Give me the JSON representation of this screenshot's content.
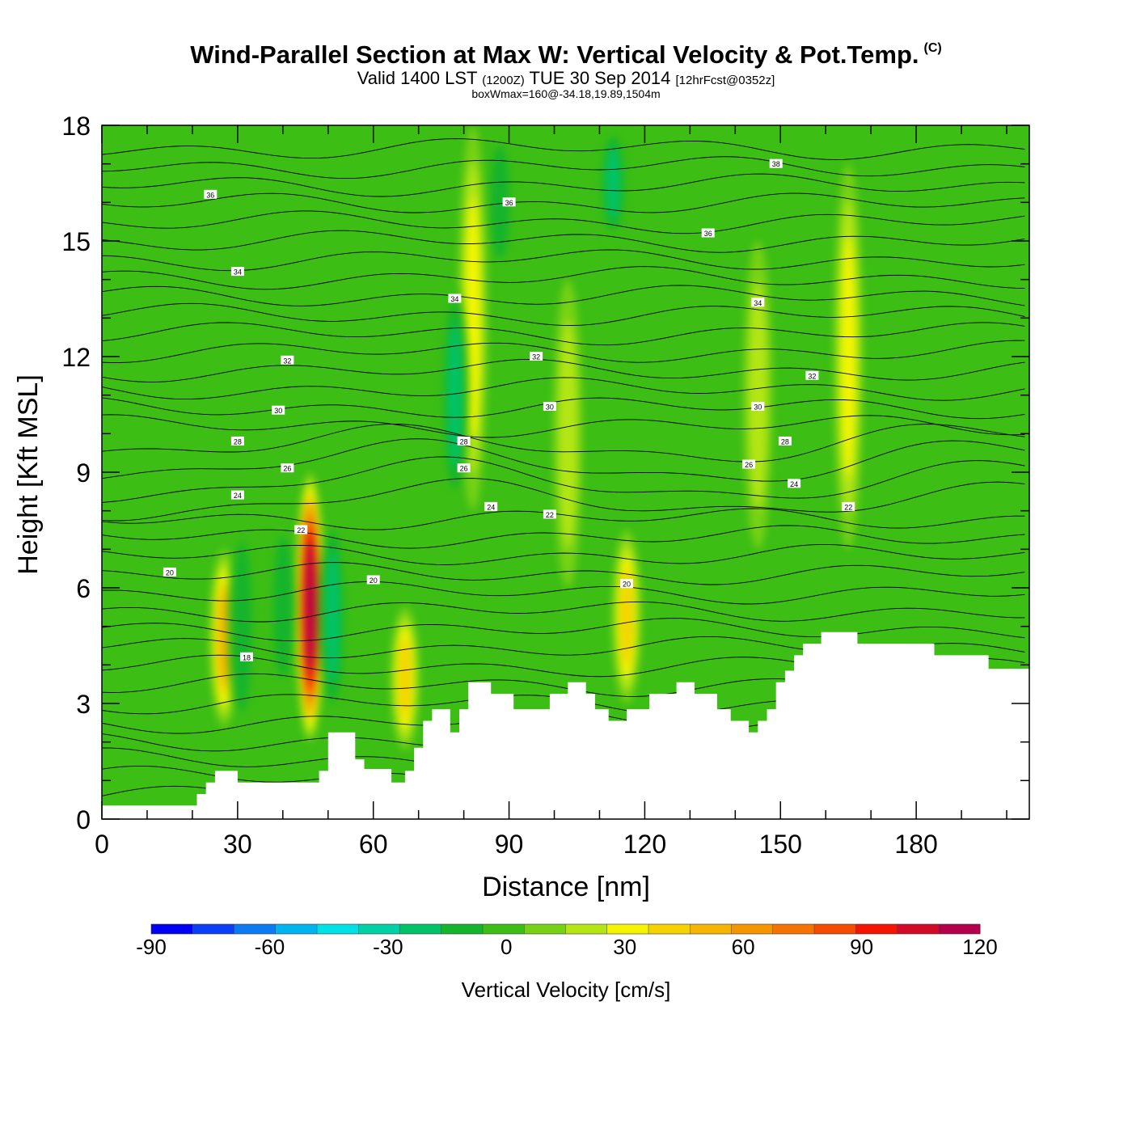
{
  "header": {
    "title": "Wind-Parallel Section at Max W: Vertical Velocity & Pot.Temp.",
    "copyright": "(C)",
    "valid_prefix": "Valid 1400 LST",
    "valid_z": "(1200Z)",
    "valid_date": "TUE 30 Sep 2014",
    "valid_fcst": "[12hrFcst@0352z]",
    "box_info": "boxWmax=160@-34.18,19.89,1504m"
  },
  "chart_data": {
    "type": "heatmap",
    "title": "Wind-Parallel Section at Max W: Vertical Velocity & Pot.Temp.",
    "xlabel": "Distance [nm]",
    "ylabel": "Height [Kft MSL]",
    "xlim": [
      0,
      205
    ],
    "ylim": [
      0,
      18
    ],
    "x_ticks": [
      "0",
      "30",
      "60",
      "90",
      "120",
      "150",
      "180"
    ],
    "y_ticks": [
      "0",
      "3",
      "6",
      "9",
      "12",
      "15",
      "18"
    ],
    "colorbar": {
      "label": "Vertical Velocity [cm/s]",
      "min": -90,
      "max": 120,
      "step": 10,
      "tick_labels": [
        "-90",
        "-60",
        "-30",
        "0",
        "30",
        "60",
        "90",
        "120"
      ],
      "colors": [
        "#0000f5",
        "#0a3ff5",
        "#0a7bf0",
        "#00b4f0",
        "#00e1e6",
        "#00d2a5",
        "#00c369",
        "#14b42d",
        "#3cbe14",
        "#78d214",
        "#b4e614",
        "#f5f500",
        "#f5d200",
        "#f5b400",
        "#f59600",
        "#f57300",
        "#f54b00",
        "#f51400",
        "#d20a28",
        "#b4004b"
      ]
    },
    "terrain_kft": [
      [
        0,
        0.35
      ],
      [
        10,
        0.35
      ],
      [
        21,
        0.35
      ],
      [
        21,
        0.65
      ],
      [
        23,
        0.65
      ],
      [
        23,
        0.95
      ],
      [
        25,
        0.95
      ],
      [
        25,
        1.25
      ],
      [
        30,
        1.25
      ],
      [
        30,
        0.95
      ],
      [
        48,
        0.95
      ],
      [
        48,
        1.25
      ],
      [
        50,
        1.25
      ],
      [
        50,
        2.25
      ],
      [
        56,
        2.25
      ],
      [
        56,
        1.55
      ],
      [
        58,
        1.55
      ],
      [
        58,
        1.3
      ],
      [
        64,
        1.3
      ],
      [
        64,
        0.95
      ],
      [
        67,
        0.95
      ],
      [
        67,
        1.25
      ],
      [
        69,
        1.25
      ],
      [
        69,
        1.85
      ],
      [
        71,
        1.85
      ],
      [
        71,
        2.55
      ],
      [
        73,
        2.55
      ],
      [
        73,
        2.85
      ],
      [
        77,
        2.85
      ],
      [
        77,
        2.25
      ],
      [
        79,
        2.25
      ],
      [
        79,
        2.85
      ],
      [
        81,
        2.85
      ],
      [
        81,
        3.55
      ],
      [
        86,
        3.55
      ],
      [
        86,
        3.25
      ],
      [
        91,
        3.25
      ],
      [
        91,
        2.85
      ],
      [
        99,
        2.85
      ],
      [
        99,
        3.25
      ],
      [
        103,
        3.25
      ],
      [
        103,
        3.55
      ],
      [
        107,
        3.55
      ],
      [
        107,
        3.25
      ],
      [
        109,
        3.25
      ],
      [
        109,
        2.85
      ],
      [
        112,
        2.85
      ],
      [
        112,
        2.55
      ],
      [
        116,
        2.55
      ],
      [
        116,
        2.85
      ],
      [
        121,
        2.85
      ],
      [
        121,
        3.25
      ],
      [
        127,
        3.25
      ],
      [
        127,
        3.55
      ],
      [
        131,
        3.55
      ],
      [
        131,
        3.25
      ],
      [
        136,
        3.25
      ],
      [
        136,
        2.85
      ],
      [
        139,
        2.85
      ],
      [
        139,
        2.55
      ],
      [
        143,
        2.55
      ],
      [
        143,
        2.25
      ],
      [
        145,
        2.25
      ],
      [
        145,
        2.55
      ],
      [
        147,
        2.55
      ],
      [
        147,
        2.85
      ],
      [
        149,
        2.85
      ],
      [
        149,
        3.55
      ],
      [
        151,
        3.55
      ],
      [
        151,
        3.85
      ],
      [
        153,
        3.85
      ],
      [
        153,
        4.25
      ],
      [
        155,
        4.25
      ],
      [
        155,
        4.55
      ],
      [
        159,
        4.55
      ],
      [
        159,
        4.85
      ],
      [
        167,
        4.85
      ],
      [
        167,
        4.55
      ],
      [
        184,
        4.55
      ],
      [
        184,
        4.25
      ],
      [
        196,
        4.25
      ],
      [
        196,
        3.9
      ],
      [
        205,
        3.9
      ]
    ],
    "vertical_velocity_features": [
      {
        "x": 46,
        "z_bottom": 2.0,
        "z_top": 9.0,
        "max": 120
      },
      {
        "x": 27,
        "z_bottom": 2.4,
        "z_top": 7.0,
        "max": 50
      },
      {
        "x": 67,
        "z_bottom": 1.8,
        "z_top": 5.5,
        "max": 40
      },
      {
        "x": 116,
        "z_bottom": 3.0,
        "z_top": 7.5,
        "max": 40
      },
      {
        "x": 165,
        "z_bottom": 7.0,
        "z_top": 17.0,
        "max": 30
      },
      {
        "x": 82,
        "z_bottom": 8.0,
        "z_top": 18.0,
        "max": 30
      },
      {
        "x": 103,
        "z_bottom": 6.0,
        "z_top": 14.0,
        "max": 25
      },
      {
        "x": 145,
        "z_bottom": 7.0,
        "z_top": 15.0,
        "max": 25
      },
      {
        "x": 31,
        "z_bottom": 2.0,
        "z_top": 8.0,
        "min": -25
      },
      {
        "x": 40,
        "z_bottom": 3.0,
        "z_top": 8.0,
        "min": -20
      },
      {
        "x": 51,
        "z_bottom": 2.5,
        "z_top": 8.0,
        "min": -30
      },
      {
        "x": 78,
        "z_bottom": 8.0,
        "z_top": 14.0,
        "min": -35
      },
      {
        "x": 113,
        "z_bottom": 15.0,
        "z_top": 18.0,
        "min": -35
      },
      {
        "x": 88,
        "z_bottom": 14.0,
        "z_top": 18.0,
        "min": -25
      }
    ],
    "potential_temperature_labels": [
      {
        "text": "36",
        "x": 24,
        "z": 16.2
      },
      {
        "text": "36",
        "x": 90,
        "z": 16.0
      },
      {
        "text": "36",
        "x": 134,
        "z": 15.2
      },
      {
        "text": "38",
        "x": 149,
        "z": 17.0
      },
      {
        "text": "34",
        "x": 30,
        "z": 14.2
      },
      {
        "text": "34",
        "x": 78,
        "z": 13.5
      },
      {
        "text": "34",
        "x": 145,
        "z": 13.4
      },
      {
        "text": "32",
        "x": 41,
        "z": 11.9
      },
      {
        "text": "32",
        "x": 96,
        "z": 12.0
      },
      {
        "text": "32",
        "x": 157,
        "z": 11.5
      },
      {
        "text": "30",
        "x": 39,
        "z": 10.6
      },
      {
        "text": "30",
        "x": 99,
        "z": 10.7
      },
      {
        "text": "30",
        "x": 145,
        "z": 10.7
      },
      {
        "text": "28",
        "x": 30,
        "z": 9.8
      },
      {
        "text": "28",
        "x": 80,
        "z": 9.8
      },
      {
        "text": "28",
        "x": 151,
        "z": 9.8
      },
      {
        "text": "26",
        "x": 41,
        "z": 9.1
      },
      {
        "text": "26",
        "x": 80,
        "z": 9.1
      },
      {
        "text": "26",
        "x": 143,
        "z": 9.2
      },
      {
        "text": "24",
        "x": 30,
        "z": 8.4
      },
      {
        "text": "24",
        "x": 86,
        "z": 8.1
      },
      {
        "text": "24",
        "x": 153,
        "z": 8.7
      },
      {
        "text": "22",
        "x": 44,
        "z": 7.5
      },
      {
        "text": "22",
        "x": 99,
        "z": 7.9
      },
      {
        "text": "22",
        "x": 165,
        "z": 8.1
      },
      {
        "text": "20",
        "x": 15,
        "z": 6.4
      },
      {
        "text": "20",
        "x": 60,
        "z": 6.2
      },
      {
        "text": "20",
        "x": 116,
        "z": 6.1
      },
      {
        "text": "18",
        "x": 32,
        "z": 4.2
      }
    ]
  }
}
